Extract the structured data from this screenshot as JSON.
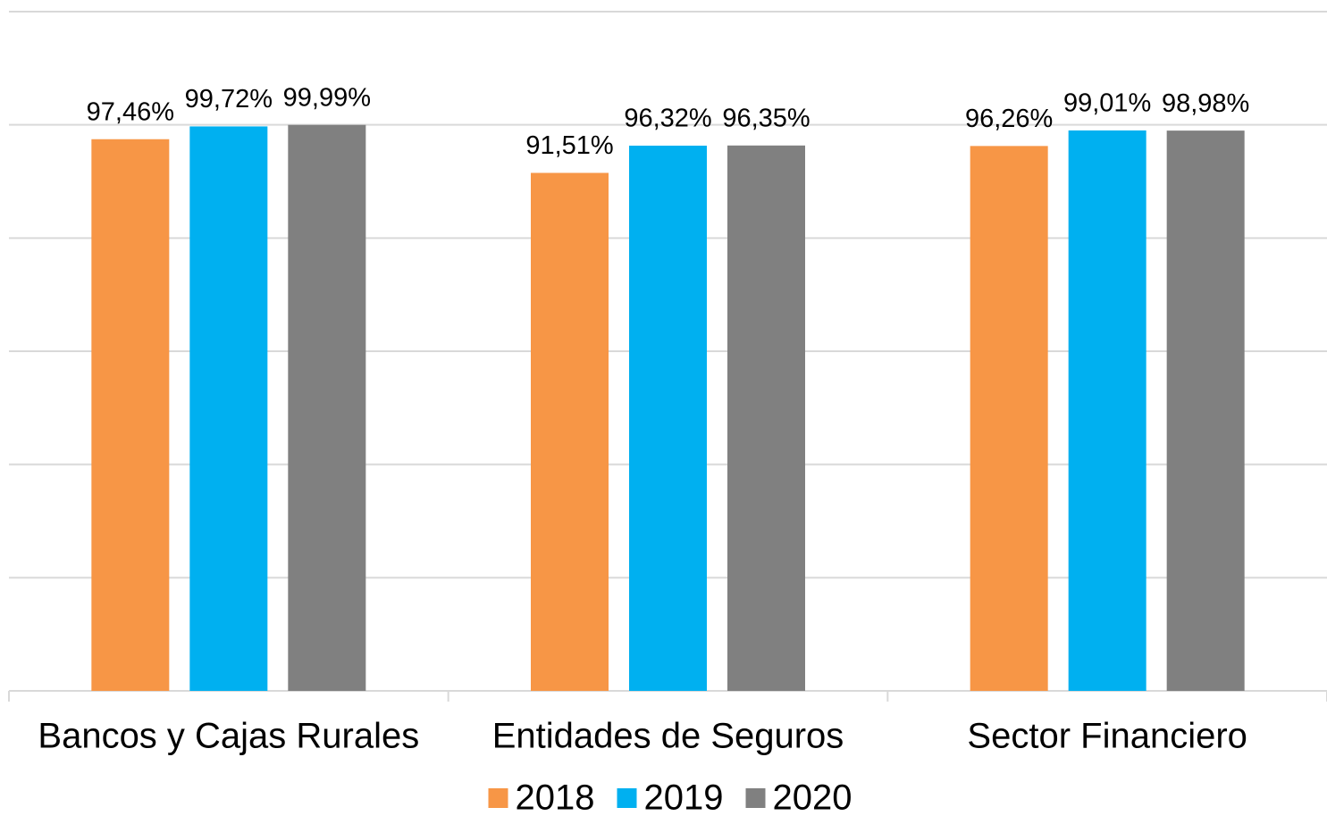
{
  "chart_data": {
    "type": "bar",
    "categories": [
      "Bancos y Cajas Rurales",
      "Entidades de Seguros",
      "Sector Financiero"
    ],
    "series": [
      {
        "name": "2018",
        "color": "#f79646",
        "values": [
          97.46,
          91.51,
          96.26
        ],
        "value_labels": [
          "97,46%",
          "91,51%",
          "96,26%"
        ]
      },
      {
        "name": "2019",
        "color": "#00b0f0",
        "values": [
          99.72,
          96.32,
          99.01
        ],
        "value_labels": [
          "99,72%",
          "96,32%",
          "99,01%"
        ]
      },
      {
        "name": "2020",
        "color": "#808080",
        "values": [
          99.99,
          96.35,
          98.98
        ],
        "value_labels": [
          "99,99%",
          "96,35%",
          "98,98%"
        ]
      }
    ],
    "ylim": [
      0,
      120
    ],
    "yticks": [
      0,
      20,
      40,
      60,
      80,
      100,
      120
    ],
    "grid": true,
    "legend": "bottom"
  }
}
